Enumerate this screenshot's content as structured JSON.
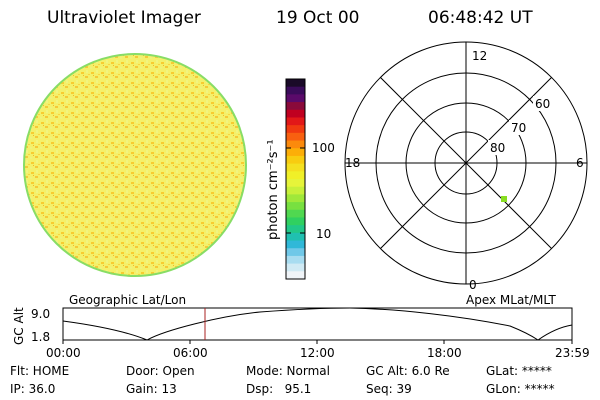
{
  "header": {
    "instrument": "Ultraviolet Imager",
    "date": "19 Oct 00",
    "time": "06:48:42 UT"
  },
  "colorbar": {
    "unit_label": "photon cm⁻²s⁻¹",
    "tick_100": "100",
    "tick_10": "10",
    "colors_top_to_bottom": [
      "#1a0a28",
      "#3a0b5a",
      "#5a0a6a",
      "#8a0a3a",
      "#c00020",
      "#e21818",
      "#f03a10",
      "#f86010",
      "#fb8a0c",
      "#fcae08",
      "#f8cc10",
      "#f4e020",
      "#f0f028",
      "#e6f43a",
      "#c8f03a",
      "#a0e83a",
      "#78e040",
      "#50d850",
      "#30d060",
      "#22c888",
      "#20c0b0",
      "#30b8d8",
      "#70c8e8",
      "#a8dcf0",
      "#d0eaf4",
      "#f0f4f8"
    ]
  },
  "polar": {
    "mlt_top": "12",
    "mlt_left": "18",
    "mlt_right": "6",
    "mlt_bottom": "0",
    "lat_60": "60",
    "lat_70": "70",
    "lat_80": "80",
    "dot_color": "#88dd22"
  },
  "timeline": {
    "left_caption": "Geographic Lat/Lon",
    "right_caption": "Apex MLat/MLT",
    "axis_label": "GC Alt",
    "ymax": "9.0",
    "ymin": "1.8",
    "x_labels": [
      "00:00",
      "06:00",
      "12:00",
      "18:00",
      "23:59"
    ],
    "marker_color": "#aa2222"
  },
  "status": {
    "flt": "Flt: HOME",
    "ip": "IP: 36.0",
    "door": "Door: Open",
    "gain": "Gain: 13",
    "mode": "Mode: Normal",
    "dsp": "Dsp:   95.1",
    "gcalt": "GC Alt: 6.0 Re",
    "seq": "Seq: 39",
    "glat": "GLat: *****",
    "glon": "GLon: *****"
  }
}
